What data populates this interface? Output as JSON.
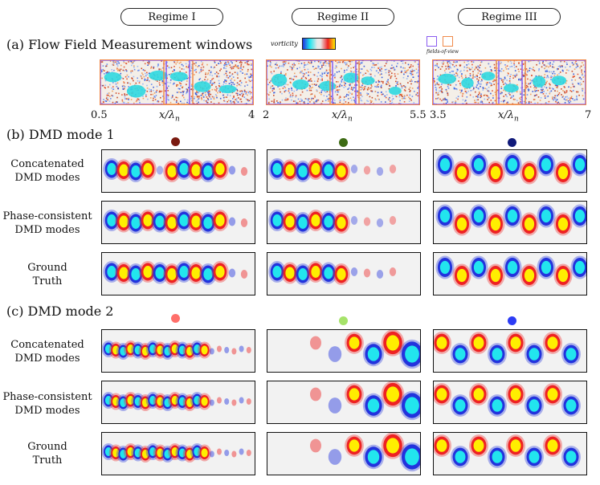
{
  "regimes": [
    "Regime I",
    "Regime II",
    "Regime III"
  ],
  "section_a": {
    "title": "(a) Flow Field Measurement windows",
    "vorticity_label": "vorticity",
    "fov_label": "fields-of-view",
    "axis_var": "x/λ",
    "axis_sub": "n",
    "axes": [
      {
        "start": "0.5",
        "end": "4"
      },
      {
        "start": "2",
        "end": "5.5"
      },
      {
        "start": "3.5",
        "end": "7"
      }
    ]
  },
  "section_b": {
    "title": "(b) DMD mode 1",
    "dot_colors": [
      "#7a1a10",
      "#3d6b14",
      "#101a7a"
    ]
  },
  "section_c": {
    "title": "(c) DMD mode 2",
    "dot_colors": [
      "#ff6f6a",
      "#a6e36a",
      "#2c3cf5"
    ]
  },
  "rows": [
    {
      "line1": "Concatenated",
      "line2": "DMD modes"
    },
    {
      "line1": "Phase-consistent",
      "line2": "DMD modes"
    },
    {
      "line1": "Ground",
      "line2": "Truth"
    }
  ],
  "colors": {
    "positive_core": "#ffee00",
    "positive_edge": "#ee2222",
    "negative_core": "#22e5ee",
    "negative_edge": "#2233dd",
    "fov_purple": "#8a5cf0",
    "fov_orange": "#f08a4a"
  }
}
